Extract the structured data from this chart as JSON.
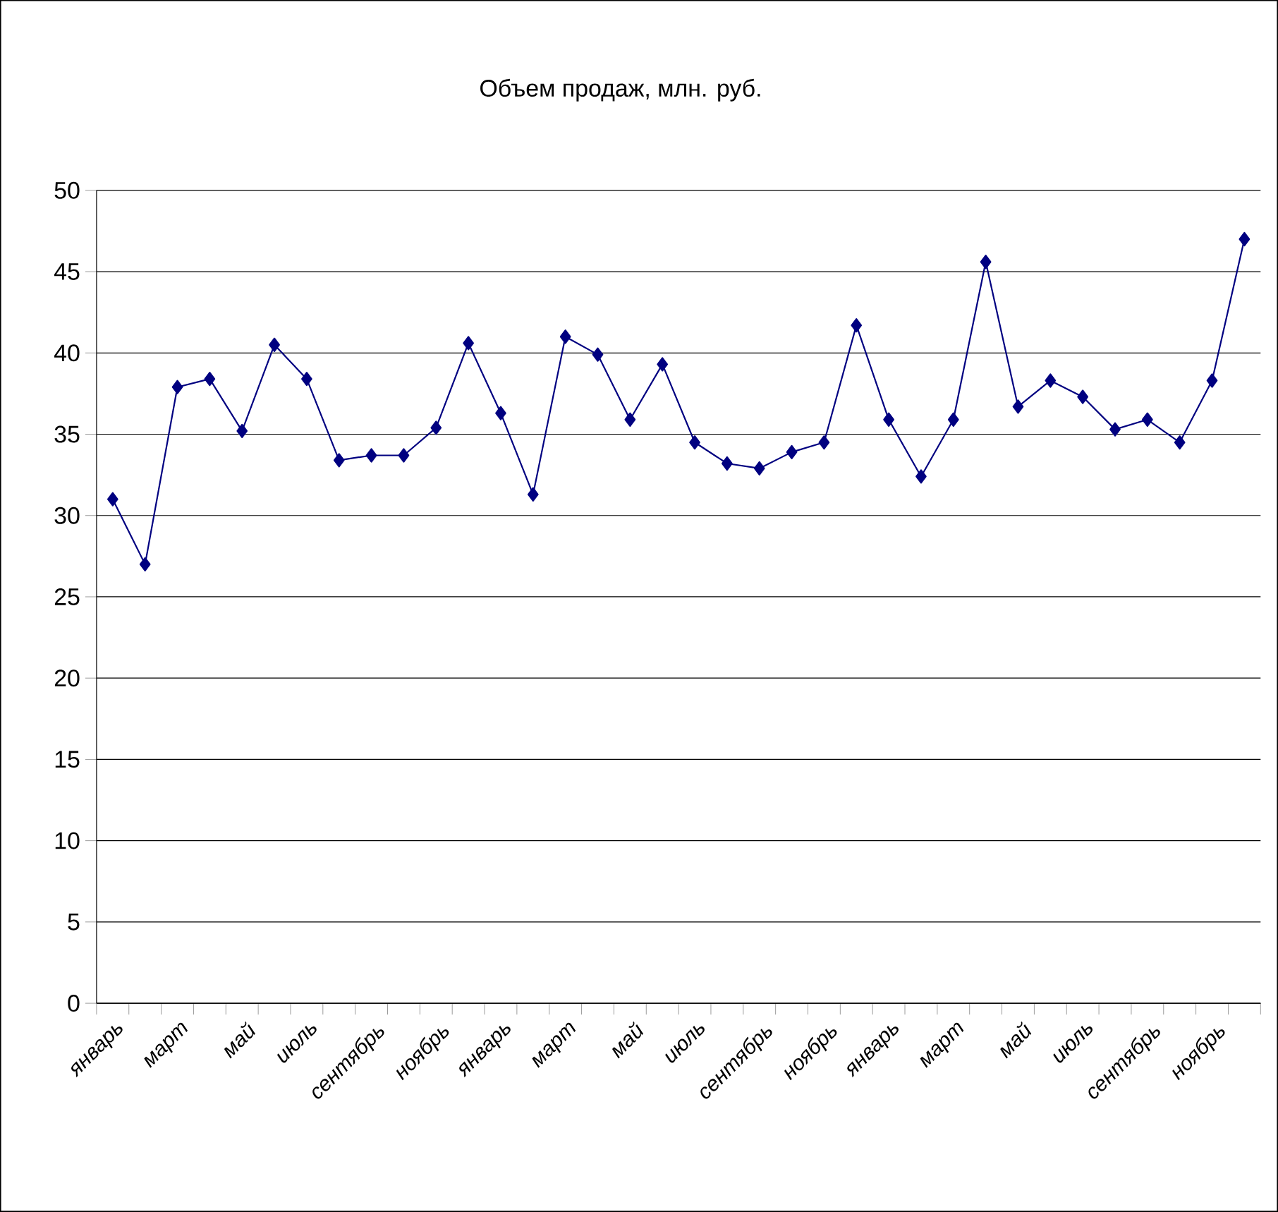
{
  "chart_data": {
    "type": "line",
    "title": "Объем продаж, млн. руб.",
    "categories": [
      "январь",
      null,
      "март",
      null,
      "май",
      null,
      "июль",
      null,
      "сентябрь",
      null,
      "ноябрь",
      null,
      "январь",
      null,
      "март",
      null,
      "май",
      null,
      "июль",
      null,
      "сентябрь",
      null,
      "ноябрь",
      null,
      "январь",
      null,
      "март",
      null,
      "май",
      null,
      "июль",
      null,
      "сентябрь",
      null,
      "ноябрь",
      null
    ],
    "series": [
      {
        "color": "#000080",
        "values": [
          31.0,
          27.0,
          37.9,
          38.4,
          35.2,
          40.5,
          38.4,
          33.4,
          33.7,
          33.7,
          35.4,
          40.6,
          36.3,
          31.3,
          41.0,
          39.9,
          35.9,
          39.3,
          34.5,
          33.2,
          32.9,
          33.9,
          34.5,
          41.7,
          35.9,
          32.4,
          35.9,
          45.6,
          36.7,
          38.3,
          37.3,
          35.3,
          35.9,
          34.5,
          38.3,
          47.0
        ]
      }
    ],
    "ylim": [
      0,
      50
    ],
    "yticks": [
      0,
      5,
      10,
      15,
      20,
      25,
      30,
      35,
      40,
      45,
      50
    ],
    "grid": "y",
    "marker": "diamond",
    "line_style": "solid"
  }
}
